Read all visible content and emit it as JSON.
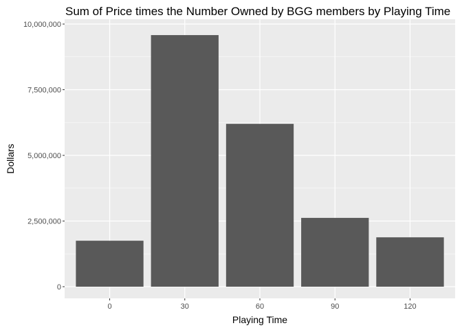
{
  "chart_data": {
    "type": "bar",
    "title": "Sum of Price times the Number Owned by BGG members by Playing Time",
    "xlabel": "Playing Time",
    "ylabel": "Dollars",
    "categories": [
      "0",
      "30",
      "60",
      "90",
      "120"
    ],
    "values": [
      1750000,
      9580000,
      6200000,
      2620000,
      1880000
    ],
    "ylim": [
      0,
      10000000
    ],
    "yticks": [
      0,
      2500000,
      5000000,
      7500000,
      10000000
    ],
    "ytick_labels": [
      "0",
      "2,500,000",
      "5,000,000",
      "7,500,000",
      "10,000,000"
    ],
    "grid": true,
    "legend": "none"
  },
  "colors": {
    "panel_background": "#ebebeb",
    "grid_major": "#ffffff",
    "bar_fill": "#595959",
    "tick_text": "#4d4d4d",
    "title_text": "#000000"
  }
}
